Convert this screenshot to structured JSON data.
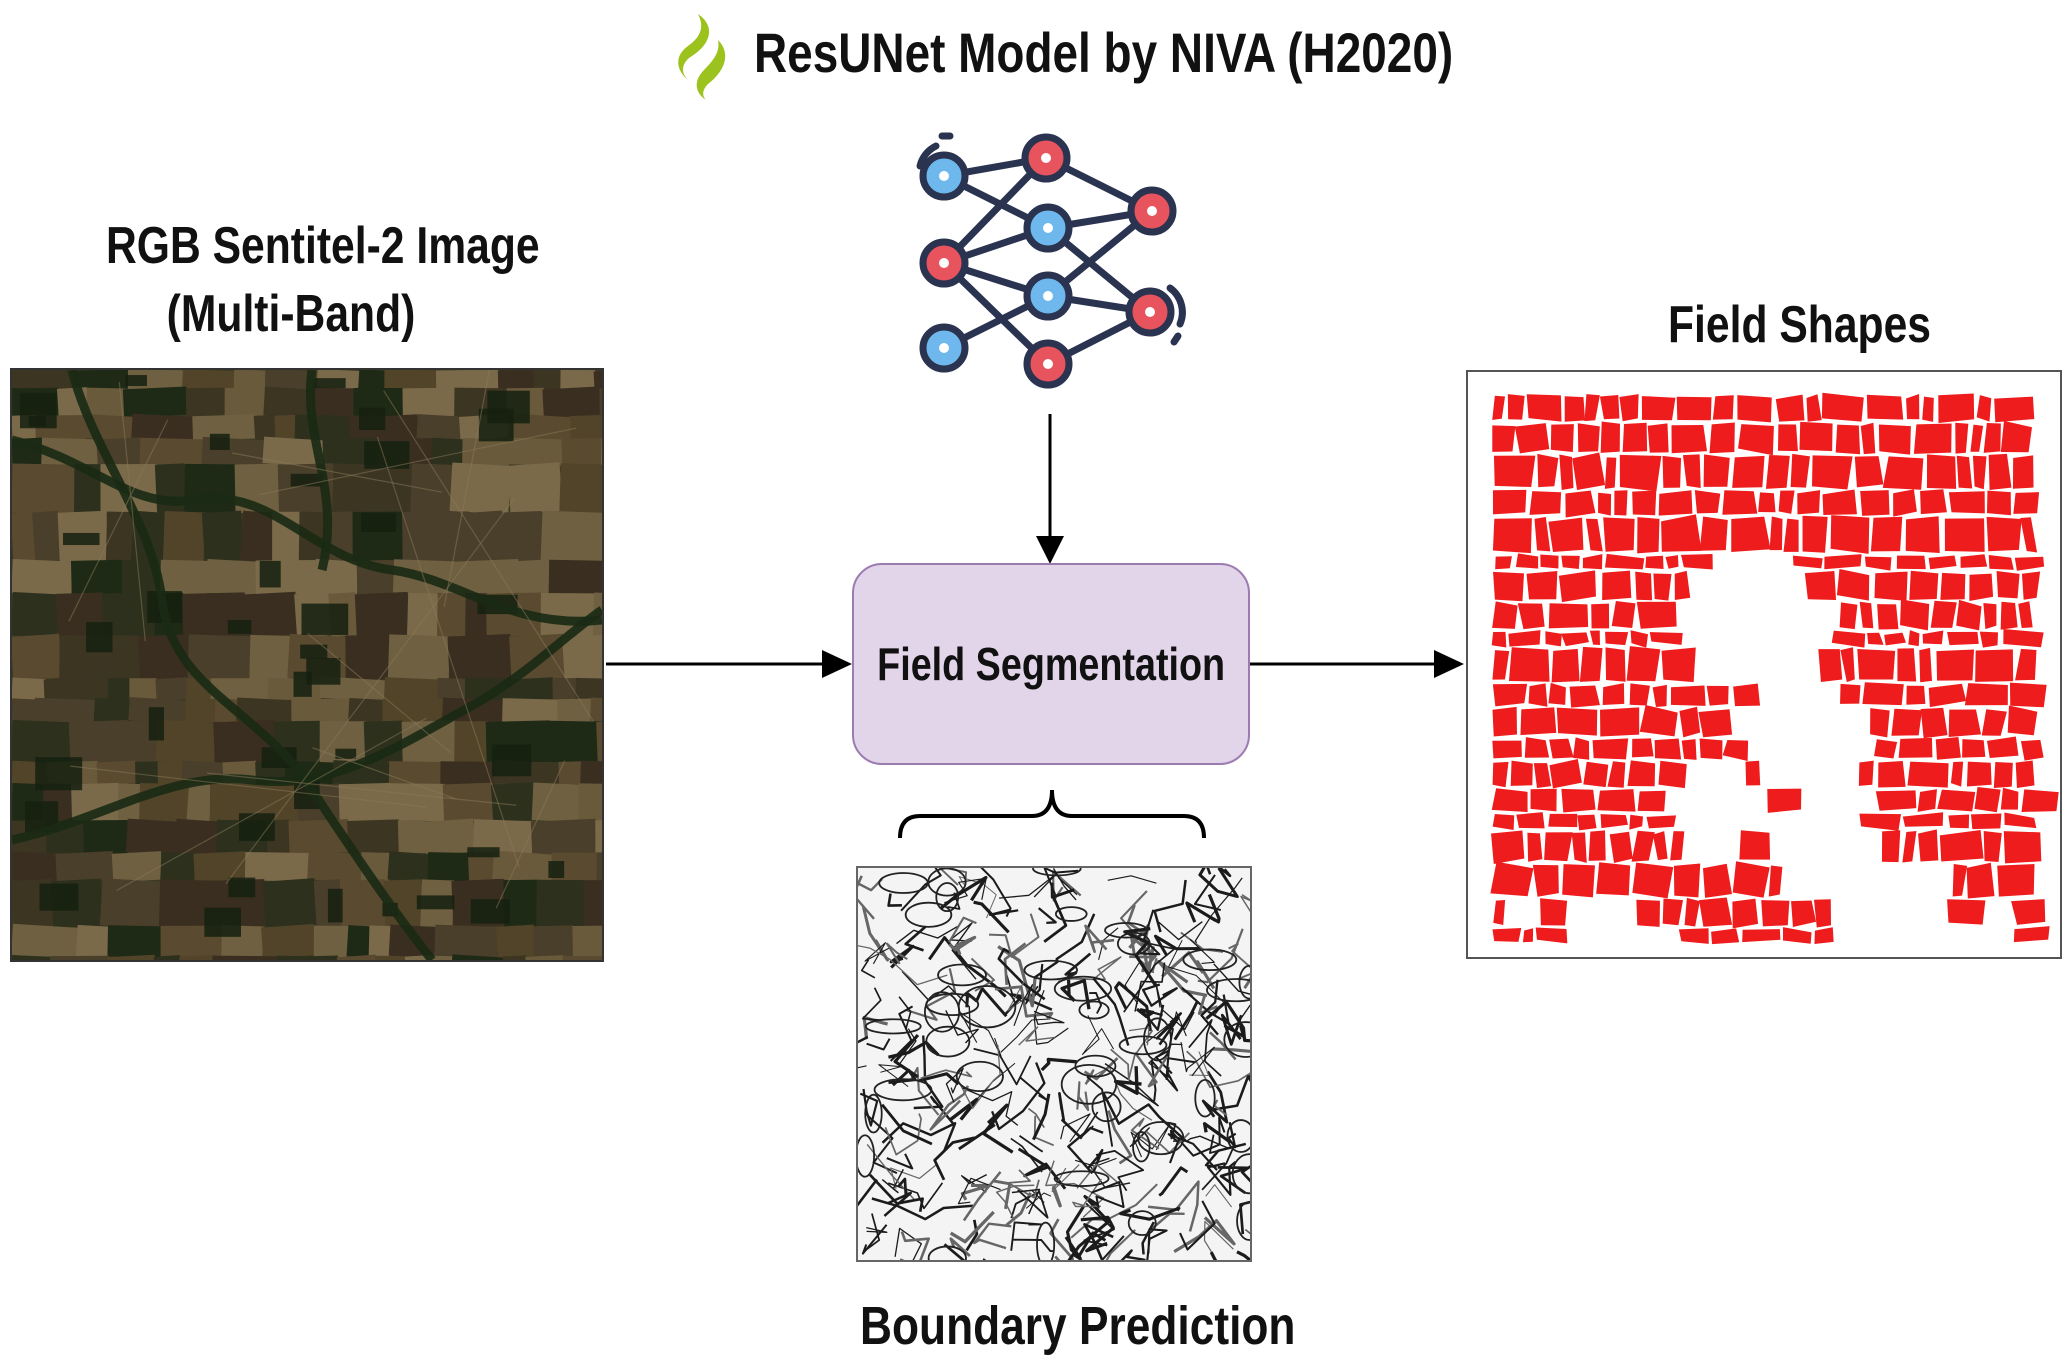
{
  "title": "ResUNet Model by NIVA (H2020)",
  "input": {
    "title_line1": "RGB Sentitel-2 Image",
    "title_line2": "(Multi-Band)"
  },
  "process": {
    "label": "Field Segmentation"
  },
  "boundary": {
    "title": "Boundary Prediction"
  },
  "output": {
    "title": "Field Shapes"
  },
  "icons": [
    "niva-logo-icon",
    "neural-network-icon"
  ],
  "colors": {
    "node_red": "#e8545e",
    "node_blue": "#6fb8ee",
    "network_stroke": "#2a3350",
    "field_red": "#ee1c1c",
    "logo_green": "#9cc21e",
    "process_fill": "#e2d5ea",
    "process_border": "#9b7bb0"
  }
}
